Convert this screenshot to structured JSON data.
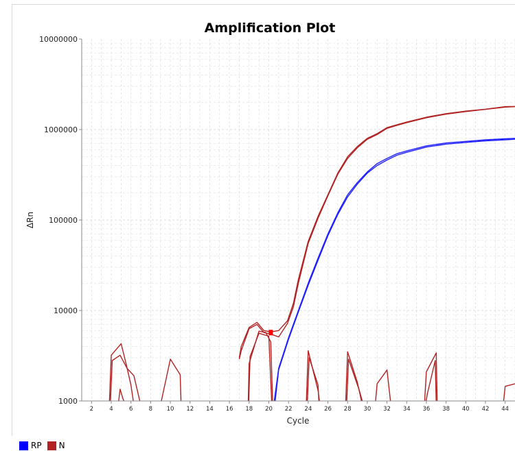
{
  "chart_data": {
    "type": "line",
    "title": "Amplification Plot",
    "xlabel": "Cycle",
    "ylabel": "ΔRn",
    "y_scale": "log",
    "xlim": [
      1,
      45
    ],
    "ylim": [
      1000,
      10000000
    ],
    "x_ticks": [
      2,
      4,
      6,
      8,
      10,
      12,
      14,
      16,
      18,
      20,
      22,
      24,
      26,
      28,
      30,
      32,
      34,
      36,
      38,
      40,
      42,
      44
    ],
    "y_ticks": [
      1000,
      10000,
      100000,
      1000000,
      10000000
    ],
    "y_tick_labels": [
      "1000",
      "10000",
      "100000",
      "1000000",
      "10000000"
    ],
    "grid": true,
    "legend_position": "bottom-left",
    "series": [
      {
        "name": "RP",
        "color": "#1f1fff",
        "x": [
          20.5,
          21,
          22,
          23,
          24,
          25,
          26,
          27,
          28,
          29,
          30,
          31,
          32,
          33,
          34,
          36,
          38,
          40,
          42,
          44,
          45
        ],
        "y": [
          900,
          2300,
          5000,
          10000,
          20000,
          38000,
          70000,
          120000,
          190000,
          260000,
          340000,
          420000,
          480000,
          540000,
          580000,
          660000,
          710000,
          740000,
          770000,
          790000,
          800000
        ]
      },
      {
        "name": "RP",
        "color": "#1f1fff",
        "x": [
          20.6,
          21,
          22,
          23,
          24,
          25,
          26,
          27,
          28,
          29,
          30,
          31,
          32,
          33,
          34,
          36,
          38,
          40,
          42,
          44,
          45
        ],
        "y": [
          900,
          2200,
          4800,
          9600,
          19000,
          36000,
          67000,
          115000,
          180000,
          250000,
          330000,
          400000,
          460000,
          520000,
          560000,
          640000,
          690000,
          720000,
          750000,
          770000,
          780000
        ]
      },
      {
        "name": "N",
        "color": "#b22222",
        "x": [
          17,
          17.2,
          18,
          18.8,
          19.5,
          20.2,
          21,
          21.9,
          22.5,
          23,
          24,
          25,
          26,
          27,
          28,
          29,
          30,
          31,
          32,
          33,
          34,
          36,
          38,
          40,
          42,
          44,
          45
        ],
        "y": [
          3000,
          4000,
          6500,
          7400,
          6000,
          5800,
          6000,
          7700,
          12000,
          22000,
          58000,
          110000,
          190000,
          330000,
          500000,
          650000,
          800000,
          900000,
          1050000,
          1130000,
          1210000,
          1370000,
          1500000,
          1600000,
          1680000,
          1790000,
          1800000
        ]
      },
      {
        "name": "N",
        "color": "#b22222",
        "x": [
          17,
          17.2,
          18,
          18.8,
          19.5,
          20.2,
          21,
          21.9,
          22.5,
          23,
          24,
          25,
          26,
          27,
          28,
          29,
          30,
          31,
          32,
          33,
          34,
          36,
          38,
          40,
          42,
          44,
          45
        ],
        "y": [
          2900,
          3600,
          6300,
          7000,
          5700,
          5500,
          5100,
          7200,
          11000,
          20000,
          55000,
          105000,
          185000,
          320000,
          480000,
          630000,
          780000,
          880000,
          1030000,
          1110000,
          1190000,
          1350000,
          1480000,
          1580000,
          1670000,
          1770000,
          1790000
        ]
      },
      {
        "name": "N",
        "color": "#b22222",
        "x": [
          3.8,
          4,
          5,
          5.5,
          6,
          6.3
        ],
        "y": [
          900,
          3200,
          4300,
          2600,
          1500,
          900
        ]
      },
      {
        "name": "N",
        "color": "#b22222",
        "x": [
          3.9,
          4.1,
          4.9,
          5.6,
          6.3,
          7
        ],
        "y": [
          900,
          2800,
          3200,
          2300,
          1900,
          900
        ]
      },
      {
        "name": "N",
        "color": "#b22222",
        "x": [
          4.7,
          4.9,
          5.2,
          5.5
        ],
        "y": [
          900,
          1350,
          1050,
          900
        ]
      },
      {
        "name": "N",
        "color": "#b22222",
        "x": [
          9,
          10,
          11,
          11.1
        ],
        "y": [
          900,
          2900,
          1950,
          900
        ]
      },
      {
        "name": "N",
        "color": "#b22222",
        "x": [
          17.9,
          18,
          19,
          19.7,
          20.2,
          20.4
        ],
        "y": [
          900,
          2600,
          5900,
          5700,
          4500,
          900
        ]
      },
      {
        "name": "N",
        "color": "#b22222",
        "x": [
          17.95,
          18.1,
          19,
          20,
          20.3
        ],
        "y": [
          900,
          3100,
          5600,
          5200,
          900
        ]
      },
      {
        "name": "N",
        "color": "#b22222",
        "x": [
          23.8,
          24,
          25,
          25.2
        ],
        "y": [
          900,
          3600,
          1300,
          900
        ]
      },
      {
        "name": "N",
        "color": "#b22222",
        "x": [
          23.9,
          24.1,
          25,
          25.1
        ],
        "y": [
          900,
          3000,
          1500,
          900
        ]
      },
      {
        "name": "N",
        "color": "#b22222",
        "x": [
          27.8,
          28,
          29,
          29.5
        ],
        "y": [
          900,
          3500,
          1600,
          900
        ]
      },
      {
        "name": "N",
        "color": "#b22222",
        "x": [
          27.9,
          28.1,
          29.2,
          29.6
        ],
        "y": [
          900,
          2900,
          1300,
          900
        ]
      },
      {
        "name": "N",
        "color": "#b22222",
        "x": [
          30.8,
          31,
          32,
          32.4
        ],
        "y": [
          900,
          1550,
          2200,
          900
        ]
      },
      {
        "name": "N",
        "color": "#b22222",
        "x": [
          35.8,
          36,
          37,
          37.1
        ],
        "y": [
          900,
          2100,
          3400,
          900
        ]
      },
      {
        "name": "N",
        "color": "#b22222",
        "x": [
          35.9,
          36.1,
          36.9,
          37
        ],
        "y": [
          900,
          1200,
          2800,
          900
        ]
      },
      {
        "name": "N",
        "color": "#b22222",
        "x": [
          43.8,
          44,
          45
        ],
        "y": [
          900,
          1450,
          1550
        ]
      }
    ],
    "threshold_marker": {
      "x": 20.2,
      "y": 5700,
      "color": "#ff0000"
    }
  },
  "legend": [
    {
      "name": "RP",
      "color": "#0000ff"
    },
    {
      "name": "N",
      "color": "#b22222"
    }
  ]
}
